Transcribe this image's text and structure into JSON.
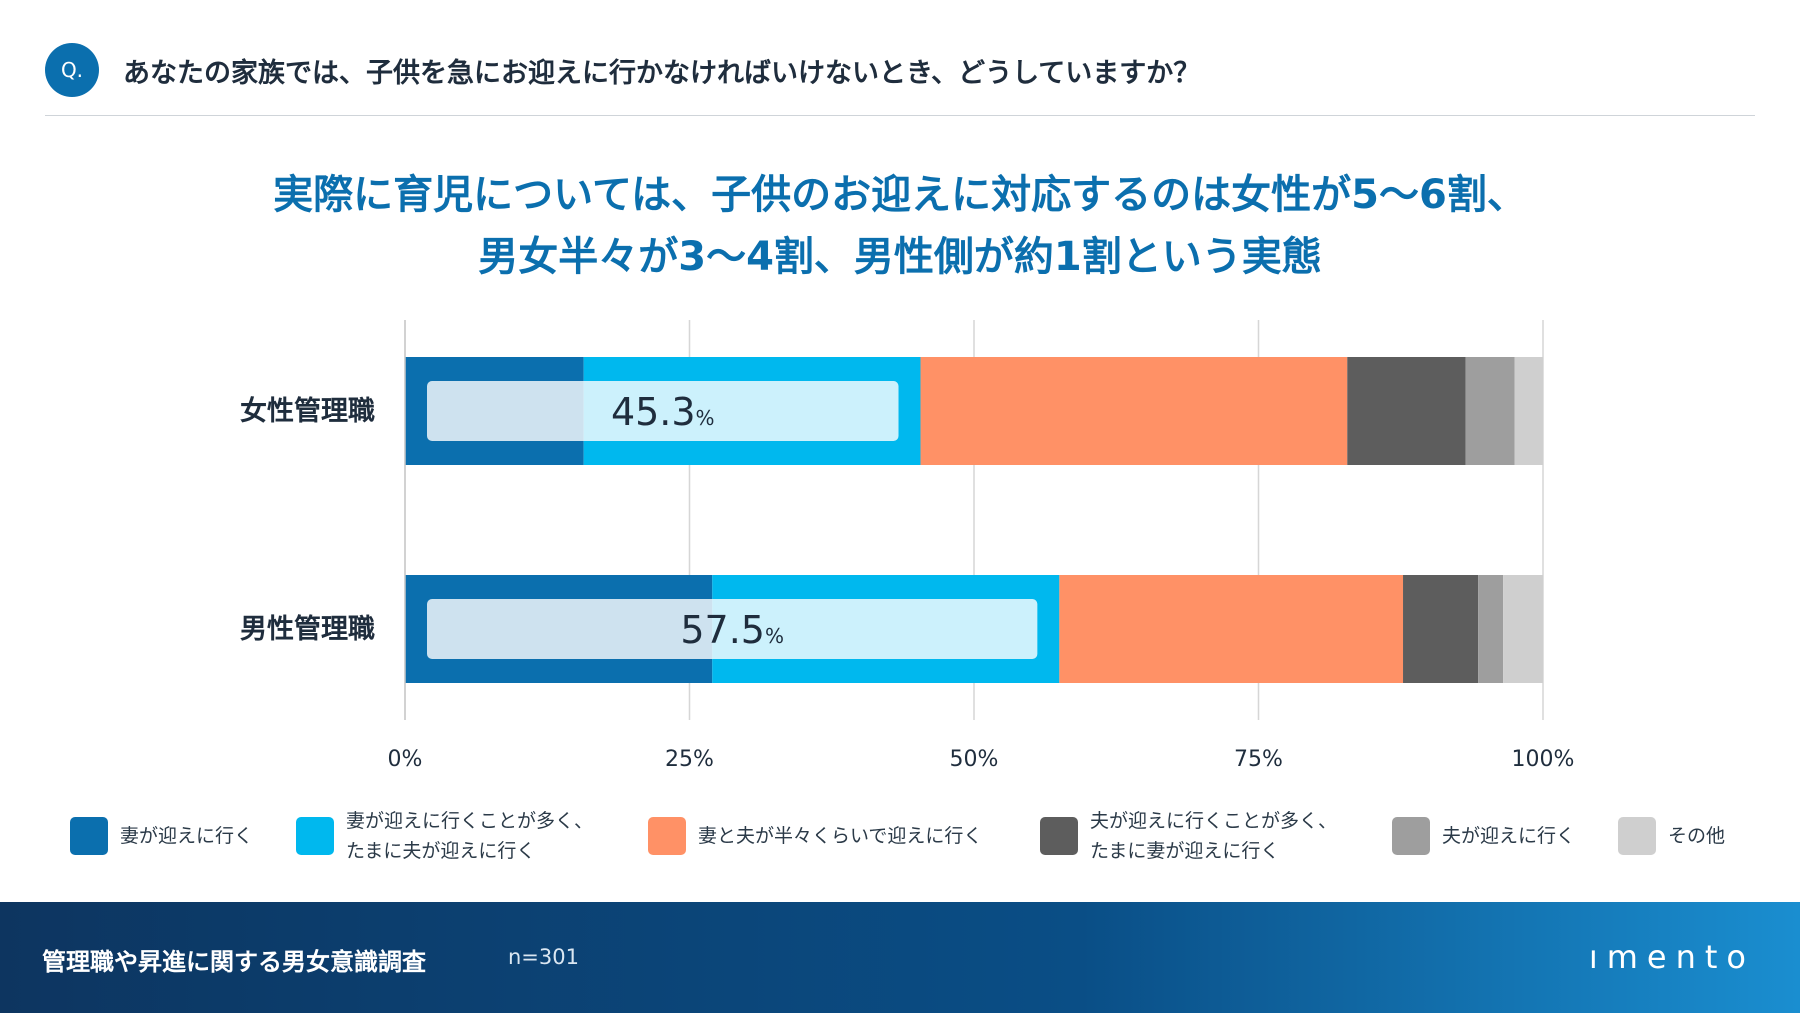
{
  "question": {
    "badge": "Q.",
    "text": "あなたの家族では、子供を急にお迎えに行かなければいけないとき、どうしていますか？"
  },
  "headline": {
    "line1": "実際に育児については、子供のお迎えに対応するのは女性が5〜6割、",
    "line2": "男女半々が3〜4割、男性側が約1割という実態"
  },
  "chart_data": {
    "type": "bar",
    "orientation": "horizontal",
    "stacked": true,
    "categories": [
      "女性管理職",
      "男性管理職"
    ],
    "series": [
      {
        "name": "妻が迎えに行く",
        "color": "#0b6fae",
        "values": [
          15.7,
          27.0
        ]
      },
      {
        "name": "妻が迎えに行くことが多く、たまに夫が迎えに行く",
        "color": "#00b8ee",
        "values": [
          29.6,
          30.5
        ]
      },
      {
        "name": "妻と夫が半々くらいで迎えに行く",
        "color": "#ff9166",
        "values": [
          37.5,
          30.2
        ]
      },
      {
        "name": "夫が迎えに行くことが多く、たまに妻が迎えに行く",
        "color": "#5d5d5d",
        "values": [
          10.4,
          6.6
        ]
      },
      {
        "name": "夫が迎えに行く",
        "color": "#9e9e9e",
        "values": [
          4.3,
          2.2
        ]
      },
      {
        "name": "その他",
        "color": "#cfcfcf",
        "values": [
          2.5,
          3.5
        ]
      }
    ],
    "annotations": [
      {
        "category": "女性管理職",
        "value": "45.3",
        "unit": "%"
      },
      {
        "category": "男性管理職",
        "value": "57.5",
        "unit": "%"
      }
    ],
    "xlim": [
      0,
      100
    ],
    "xticks": [
      0,
      25,
      50,
      75,
      100
    ],
    "xtick_labels": [
      "0%",
      "25%",
      "50%",
      "75%",
      "100%"
    ],
    "grid": true
  },
  "legend": [
    {
      "label": "妻が迎えに行く",
      "color": "#0b6fae"
    },
    {
      "label": "妻が迎えに行くことが多く、\nたまに夫が迎えに行く",
      "color": "#00b8ee"
    },
    {
      "label": "妻と夫が半々くらいで迎えに行く",
      "color": "#ff9166"
    },
    {
      "label": "夫が迎えに行くことが多く、\nたまに妻が迎えに行く",
      "color": "#5d5d5d"
    },
    {
      "label": "夫が迎えに行く",
      "color": "#9e9e9e"
    },
    {
      "label": "その他",
      "color": "#cfcfcf"
    }
  ],
  "footer": {
    "title": "管理職や昇進に関する男女意識調査",
    "n": "n=301",
    "logo": "ımento"
  }
}
